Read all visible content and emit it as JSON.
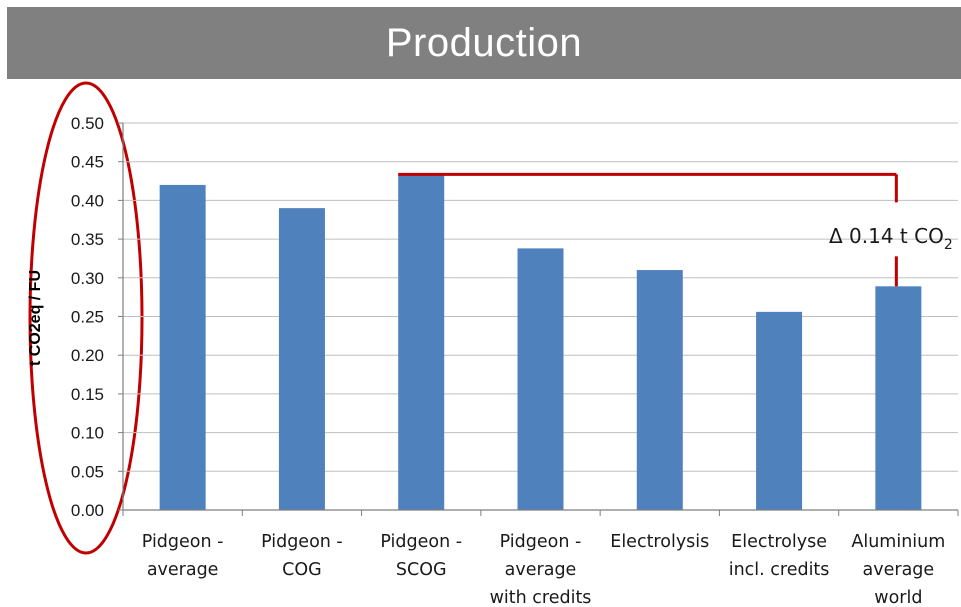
{
  "header": {
    "title": "Production"
  },
  "chart_data": {
    "type": "bar",
    "title": "Production",
    "ylabel": "t CO2eq / FU",
    "xlabel": "",
    "ylim": [
      0,
      0.5
    ],
    "ytick_step": 0.05,
    "yticks": [
      "0.00",
      "0.05",
      "0.10",
      "0.15",
      "0.20",
      "0.25",
      "0.30",
      "0.35",
      "0.40",
      "0.45",
      "0.50"
    ],
    "grid": true,
    "legend": "none",
    "bar_color": "#4f81bd",
    "annotation_color": "#c00000",
    "categories": [
      [
        "Pidgeon -",
        "average"
      ],
      [
        "Pidgeon -",
        "COG"
      ],
      [
        "Pidgeon -",
        "SCOG"
      ],
      [
        "Pidgeon -",
        "average",
        "with credits"
      ],
      [
        "Electrolysis"
      ],
      [
        "Electrolyse",
        "incl. credits"
      ],
      [
        "Aluminium",
        "average",
        "world"
      ]
    ],
    "values": [
      0.42,
      0.39,
      0.433,
      0.338,
      0.31,
      0.256,
      0.289
    ],
    "annotations": [
      {
        "text": "Δ 0.14 t CO",
        "subscript": "2",
        "from_category": 2,
        "to_category": 6
      }
    ]
  }
}
